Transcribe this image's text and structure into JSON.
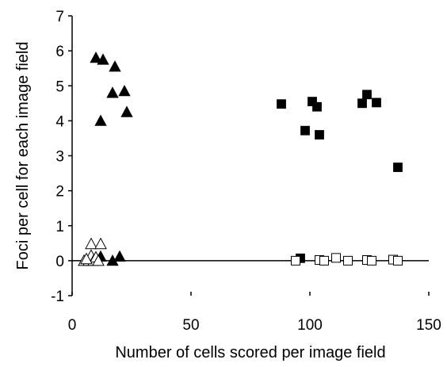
{
  "chart_data": {
    "type": "scatter",
    "title": "",
    "xlabel": "Number of cells scored per image field",
    "ylabel": "Foci per cell for each image field",
    "xlim": [
      0,
      150
    ],
    "ylim": [
      -1,
      7
    ],
    "xticks": [
      "0",
      "50",
      "100",
      "150"
    ],
    "yticks": [
      "-1",
      "0",
      "1",
      "2",
      "3",
      "4",
      "5",
      "6",
      "7"
    ],
    "grid": false,
    "legend": "none",
    "series": [
      {
        "marker": "filled-triangle",
        "color": "#000000",
        "points": [
          {
            "x": 10,
            "y": 5.8
          },
          {
            "x": 13,
            "y": 5.75
          },
          {
            "x": 18,
            "y": 5.55
          },
          {
            "x": 17,
            "y": 4.8
          },
          {
            "x": 22,
            "y": 4.85
          },
          {
            "x": 23,
            "y": 4.25
          },
          {
            "x": 12,
            "y": 4.0
          },
          {
            "x": 8,
            "y": 0.05
          },
          {
            "x": 10,
            "y": 0.08
          },
          {
            "x": 12,
            "y": 0.12
          },
          {
            "x": 17,
            "y": 0.0
          },
          {
            "x": 20,
            "y": 0.12
          }
        ]
      },
      {
        "marker": "open-triangle",
        "color": "#000000",
        "points": [
          {
            "x": 5,
            "y": 0.0
          },
          {
            "x": 7,
            "y": 0.0
          },
          {
            "x": 8,
            "y": 0.48
          },
          {
            "x": 8,
            "y": 0.15
          },
          {
            "x": 9,
            "y": 0.0
          },
          {
            "x": 10,
            "y": 0.1
          },
          {
            "x": 11,
            "y": 0.0
          },
          {
            "x": 12,
            "y": 0.48
          },
          {
            "x": 6,
            "y": 0.05
          }
        ]
      },
      {
        "marker": "filled-square",
        "color": "#000000",
        "points": [
          {
            "x": 88,
            "y": 4.48
          },
          {
            "x": 98,
            "y": 3.72
          },
          {
            "x": 101,
            "y": 4.55
          },
          {
            "x": 103,
            "y": 4.4
          },
          {
            "x": 104,
            "y": 3.6
          },
          {
            "x": 122,
            "y": 4.5
          },
          {
            "x": 124,
            "y": 4.75
          },
          {
            "x": 128,
            "y": 4.52
          },
          {
            "x": 137,
            "y": 2.67
          },
          {
            "x": 96,
            "y": 0.07
          }
        ]
      },
      {
        "marker": "open-square",
        "color": "#000000",
        "points": [
          {
            "x": 94,
            "y": 0.0
          },
          {
            "x": 104,
            "y": 0.02
          },
          {
            "x": 106,
            "y": 0.0
          },
          {
            "x": 111,
            "y": 0.08
          },
          {
            "x": 116,
            "y": 0.0
          },
          {
            "x": 124,
            "y": 0.02
          },
          {
            "x": 126,
            "y": 0.0
          },
          {
            "x": 135,
            "y": 0.03
          },
          {
            "x": 137,
            "y": 0.0
          }
        ]
      }
    ]
  }
}
